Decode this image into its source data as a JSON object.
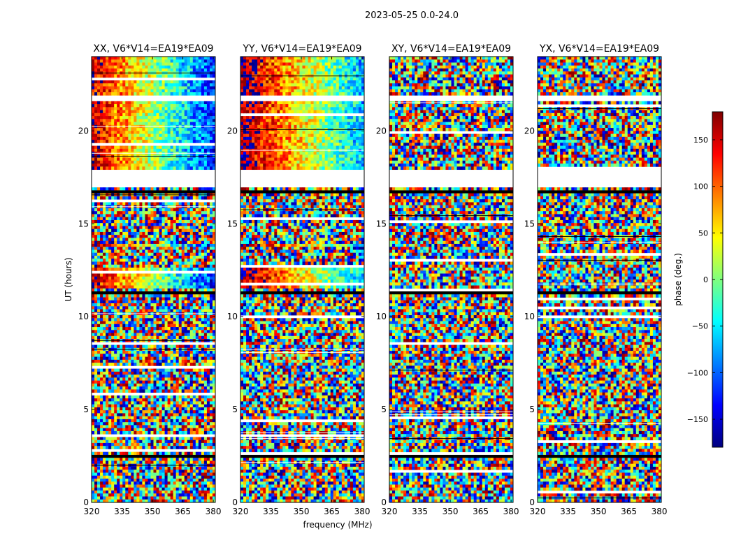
{
  "figure": {
    "suptitle": "2023-05-25 0.0-24.0",
    "ylabel": "UT (hours)",
    "xlabel": "frequency (MHz)"
  },
  "chart_data": {
    "type": "heatmap",
    "x": {
      "label": "frequency (MHz)",
      "range": [
        320,
        381
      ],
      "ticks": [
        320,
        335,
        350,
        365,
        380
      ]
    },
    "y": {
      "label": "UT (hours)",
      "range": [
        0,
        24
      ],
      "ticks": [
        0,
        5,
        10,
        15,
        20
      ]
    },
    "colorbar": {
      "label": "phase (deg.)",
      "range": [
        -180,
        180
      ],
      "ticks": [
        -150,
        -100,
        -50,
        0,
        50,
        100,
        150
      ],
      "colormap": "jet",
      "colors": [
        "#00007f",
        "#0000ff",
        "#007fff",
        "#00ffff",
        "#7fff7f",
        "#ffff00",
        "#ff7f00",
        "#ff0000",
        "#7f0000"
      ]
    },
    "panels": [
      {
        "title": "XX, V6*V14=EA19*EA09",
        "polarization": "XX",
        "coherent_phase": true,
        "phase_trend_deg": {
          "start": 150,
          "end": -120
        }
      },
      {
        "title": "YY, V6*V14=EA19*EA09",
        "polarization": "YY",
        "coherent_phase": true,
        "phase_trend_deg": {
          "start": 175,
          "end": -70
        }
      },
      {
        "title": "XY, V6*V14=EA19*EA09",
        "polarization": "XY",
        "coherent_phase": false
      },
      {
        "title": "YX, V6*V14=EA19*EA09",
        "polarization": "YX",
        "coherent_phase": false
      }
    ],
    "flagged_time_ranges_hours": [
      [
        21.6,
        22.0
      ],
      [
        16.9,
        18.0
      ]
    ],
    "dark_bands_hours": [
      [
        16.7,
        16.85
      ],
      [
        11.2,
        11.4
      ],
      [
        2.45,
        2.6
      ]
    ],
    "coherent_segments_hours": [
      [
        18.0,
        21.6
      ],
      [
        22.0,
        24.0
      ],
      [
        13.7,
        13.9
      ],
      [
        12.4,
        12.6
      ],
      [
        11.5,
        12.4
      ],
      [
        2.5,
        2.6
      ]
    ],
    "grid": false
  }
}
